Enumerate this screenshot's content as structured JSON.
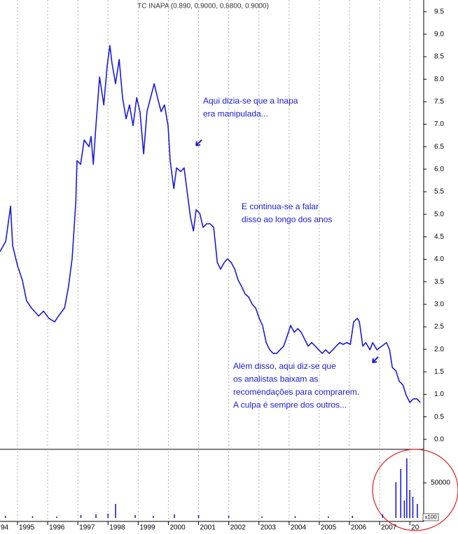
{
  "chart_data": {
    "type": "line",
    "title": "TC INAPA (0.890, 0.9000, 0.8800, 0.9000)",
    "annotations": [
      [
        "Aqui dizia-se que a Inapa",
        "era manipulada..."
      ],
      [
        "E continua-se a falar",
        "disso ao longo dos anos"
      ],
      [
        "Além disso, aqui diz-se que",
        "os analistas baixam as",
        "recomendações para comprarem.",
        "A culpa é sempre dos outros..."
      ]
    ],
    "xlim": [
      1994.42,
      2008.46
    ],
    "xticks": [
      {
        "value": 1994,
        "label": "94"
      },
      1995,
      1996,
      1997,
      1998,
      1999,
      2000,
      2001,
      2002,
      2003,
      2004,
      2005,
      2006,
      2007,
      {
        "value": 2008,
        "label": "20"
      }
    ],
    "ylim": [
      -0.19,
      9.76
    ],
    "yticks": [
      9.5,
      {
        "value": 9,
        "label": "9.0"
      },
      8.5,
      {
        "value": 8,
        "label": "8.0"
      },
      7.5,
      {
        "value": 7,
        "label": "7.0"
      },
      6.5,
      {
        "value": 6,
        "label": "6.0"
      },
      5.5,
      {
        "value": 5,
        "label": "5.0"
      },
      4.5,
      {
        "value": 4,
        "label": "4.0"
      },
      3.5,
      {
        "value": 3,
        "label": "3.0"
      },
      2.5,
      {
        "value": 2,
        "label": "2.0"
      },
      1.5,
      {
        "value": 1,
        "label": "1.0"
      },
      0.5,
      {
        "value": 0,
        "label": "0.0"
      }
    ],
    "grid": true,
    "x": [
      1994.42,
      1994.61,
      1994.77,
      1994.84,
      1995.0,
      1995.16,
      1995.3,
      1995.46,
      1995.7,
      1995.86,
      1996.04,
      1996.23,
      1996.39,
      1996.56,
      1996.69,
      1996.81,
      1996.93,
      1996.97,
      1997.09,
      1997.21,
      1997.37,
      1997.44,
      1997.51,
      1997.6,
      1997.72,
      1997.86,
      1997.97,
      1998.06,
      1998.13,
      1998.25,
      1998.37,
      1998.48,
      1998.6,
      1998.71,
      1998.83,
      1998.95,
      1999.06,
      1999.18,
      1999.29,
      1999.41,
      1999.53,
      1999.64,
      1999.76,
      1999.87,
      1999.99,
      2000.06,
      2000.18,
      2000.27,
      2000.41,
      2000.52,
      2000.64,
      2000.73,
      2000.83,
      2000.92,
      2001.04,
      2001.15,
      2001.27,
      2001.38,
      2001.5,
      2001.62,
      2001.73,
      2001.85,
      2001.96,
      2002.08,
      2002.2,
      2002.31,
      2002.43,
      2002.54,
      2002.66,
      2002.78,
      2002.89,
      2003.01,
      2003.12,
      2003.24,
      2003.36,
      2003.47,
      2003.59,
      2003.7,
      2003.82,
      2003.94,
      2004.05,
      2004.17,
      2004.29,
      2004.4,
      2004.52,
      2004.63,
      2004.75,
      2004.87,
      2004.98,
      2005.1,
      2005.21,
      2005.33,
      2005.45,
      2005.56,
      2005.68,
      2005.79,
      2005.91,
      2006.03,
      2006.14,
      2006.26,
      2006.33,
      2006.44,
      2006.54,
      2006.68,
      2006.77,
      2006.91,
      2007.07,
      2007.23,
      2007.33,
      2007.42,
      2007.54,
      2007.65,
      2007.77,
      2007.88,
      2008.0,
      2008.12,
      2008.23,
      2008.35
    ],
    "series": [
      {
        "color": "#1a1adc",
        "values": [
          4.17,
          4.4,
          5.18,
          4.3,
          3.86,
          3.54,
          3.08,
          2.92,
          2.74,
          2.85,
          2.69,
          2.61,
          2.77,
          2.92,
          3.39,
          4.01,
          5.26,
          6.19,
          6.11,
          6.65,
          6.5,
          6.73,
          6.11,
          6.97,
          8.05,
          7.43,
          8.29,
          8.75,
          8.36,
          7.9,
          8.44,
          7.59,
          7.12,
          7.43,
          6.97,
          7.59,
          7.28,
          6.34,
          7.28,
          7.59,
          7.9,
          7.59,
          7.28,
          7.43,
          6.97,
          6.19,
          5.57,
          6.03,
          5.95,
          6.03,
          5.41,
          4.94,
          4.63,
          5.1,
          5.02,
          4.71,
          4.79,
          4.79,
          4.71,
          3.93,
          3.78,
          3.93,
          4.01,
          3.93,
          3.78,
          3.54,
          3.39,
          3.23,
          3.16,
          3.0,
          2.92,
          2.69,
          2.53,
          2.15,
          1.99,
          1.91,
          1.91,
          1.99,
          2.07,
          2.3,
          2.53,
          2.38,
          2.46,
          2.38,
          2.22,
          2.07,
          2.15,
          2.07,
          1.99,
          1.91,
          1.99,
          1.91,
          1.99,
          2.07,
          2.15,
          2.11,
          2.15,
          2.11,
          2.61,
          2.69,
          2.61,
          2.07,
          2.15,
          1.99,
          2.15,
          1.99,
          2.07,
          2.15,
          1.99,
          1.6,
          1.52,
          1.29,
          1.21,
          0.98,
          0.82,
          0.9,
          0.9,
          0.82
        ]
      }
    ],
    "volume": {
      "color": "#1a1adc",
      "ylim": [
        0,
        95000
      ],
      "yticks": [
        50000
      ],
      "unit_label": "x100",
      "x": [
        1994.6,
        1995.5,
        1996.3,
        1997.1,
        1997.6,
        1998.0,
        1998.25,
        1998.9,
        1999.5,
        2000.2,
        2001.0,
        2002.0,
        2003.1,
        2004.2,
        2005.3,
        2006.1,
        2007.1,
        2007.54,
        2007.7,
        2007.82,
        2007.9,
        2008.0,
        2008.1,
        2008.25
      ],
      "values": [
        3000,
        2500,
        2000,
        4000,
        5000,
        6000,
        20000,
        4000,
        3000,
        5000,
        4000,
        3000,
        2000,
        2500,
        2000,
        3000,
        5000,
        51000,
        70000,
        25000,
        85000,
        40000,
        30000,
        20000
      ]
    }
  }
}
